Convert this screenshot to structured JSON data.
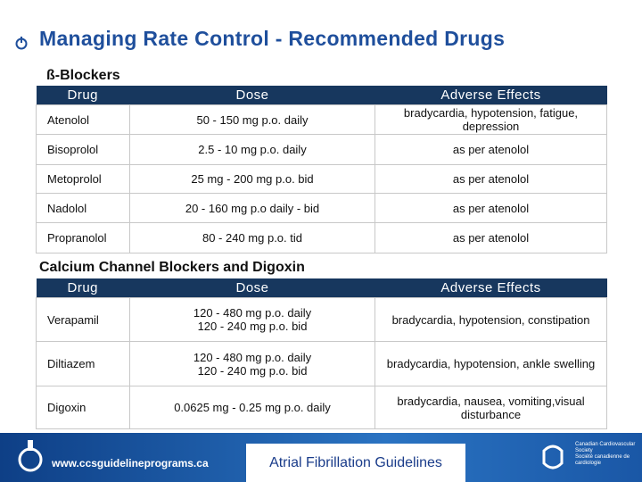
{
  "title": "Managing Rate Control - Recommended Drugs",
  "sections": [
    {
      "heading": "ß-Blockers",
      "columns": [
        "Drug",
        "Dose",
        "Adverse Effects"
      ],
      "rows": [
        [
          "Atenolol",
          "50 - 150 mg p.o. daily",
          "bradycardia, hypotension, fatigue, depression"
        ],
        [
          "Bisoprolol",
          "2.5 - 10 mg p.o. daily",
          "as per atenolol"
        ],
        [
          "Metoprolol",
          "25 mg - 200 mg p.o. bid",
          "as per atenolol"
        ],
        [
          "Nadolol",
          "20 - 160 mg p.o daily - bid",
          "as per atenolol"
        ],
        [
          "Propranolol",
          "80 - 240 mg p.o. tid",
          "as per atenolol"
        ]
      ]
    },
    {
      "heading": "Calcium Channel Blockers and Digoxin",
      "columns": [
        "Drug",
        "Dose",
        "Adverse Effects"
      ],
      "rows": [
        [
          "Verapamil",
          [
            "120 - 480 mg p.o. daily",
            "120 - 240 mg p.o. bid"
          ],
          "bradycardia, hypotension, constipation"
        ],
        [
          "Diltiazem",
          [
            "120 - 480 mg p.o. daily",
            "120 - 240 mg p.o. bid"
          ],
          "bradycardia, hypotension, ankle swelling"
        ],
        [
          "Digoxin",
          "0.0625 mg - 0.25 mg p.o. daily",
          "bradycardia, nausea, vomiting,visual disturbance"
        ]
      ]
    }
  ],
  "footer": {
    "url": "www.ccsguidelineprograms.ca",
    "center": "Atrial Fibrillation Guidelines",
    "logo": [
      "Canadian Cardiovascular Society",
      "Société canadienne de cardiologie"
    ]
  }
}
